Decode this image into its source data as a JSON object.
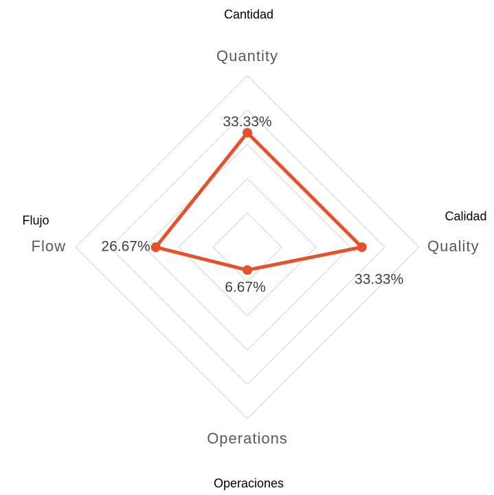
{
  "chart_data": {
    "type": "radar",
    "annotations": [
      "Cantidad",
      "Calidad",
      "Operaciones",
      "Flujo"
    ],
    "categories": [
      "Quantity",
      "Quality",
      "Operations",
      "Flow"
    ],
    "values": [
      33.33,
      33.33,
      6.67,
      26.67
    ],
    "value_labels": [
      "33.33%",
      "33.33%",
      "6.67%",
      "26.67%"
    ],
    "color": "#e8502a",
    "ylim": [
      0,
      50
    ],
    "yticks": [
      10,
      20,
      30,
      40,
      50
    ],
    "grid": true
  }
}
